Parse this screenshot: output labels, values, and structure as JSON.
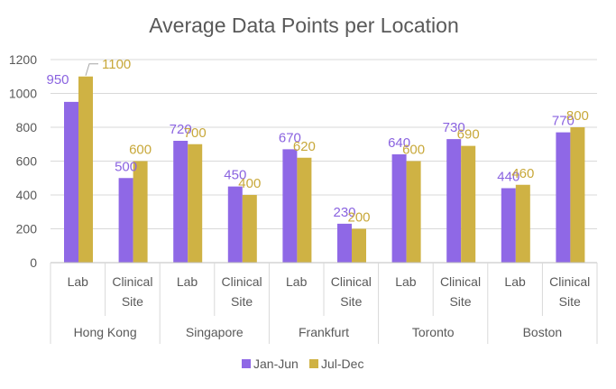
{
  "chart_data": {
    "type": "bar",
    "title": "Average Data Points per Location",
    "xlabel": "",
    "ylabel": "",
    "ylim": [
      0,
      1200
    ],
    "yticks": [
      0,
      200,
      400,
      600,
      800,
      1000,
      1200
    ],
    "grid": true,
    "legend_position": "bottom",
    "groups": [
      {
        "name": "Hong Kong",
        "categories": [
          "Lab",
          "Clinical Site"
        ]
      },
      {
        "name": "Singapore",
        "categories": [
          "Lab",
          "Clinical Site"
        ]
      },
      {
        "name": "Frankfurt",
        "categories": [
          "Lab",
          "Clinical Site"
        ]
      },
      {
        "name": "Toronto",
        "categories": [
          "Lab",
          "Clinical Site"
        ]
      },
      {
        "name": "Boston",
        "categories": [
          "Lab",
          "Clinical Site"
        ]
      }
    ],
    "series": [
      {
        "name": "Jan-Jun",
        "color": "#8f68e6",
        "label_color": "#8a63e0",
        "values": [
          950,
          500,
          720,
          450,
          670,
          230,
          640,
          730,
          440,
          770
        ]
      },
      {
        "name": "Jul-Dec",
        "color": "#cfb244",
        "label_color": "#c8a83a",
        "values": [
          1100,
          600,
          700,
          400,
          620,
          200,
          600,
          690,
          460,
          800
        ]
      }
    ]
  }
}
